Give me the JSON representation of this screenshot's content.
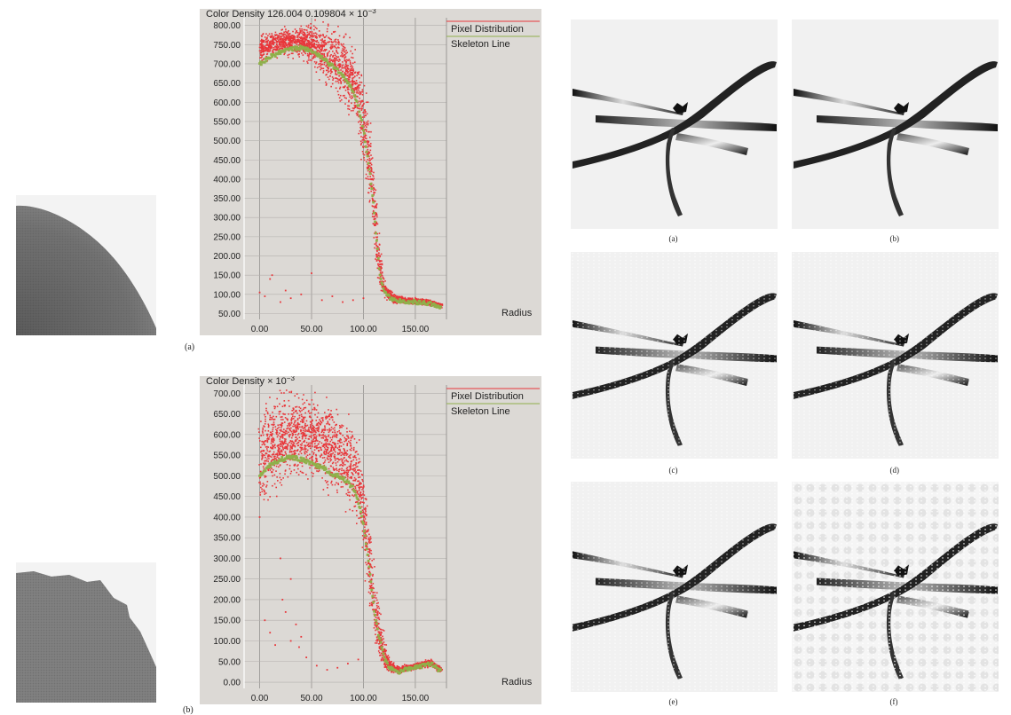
{
  "colors": {
    "pixel_distribution": "#e8363a",
    "skeleton_line": "#8fb04a",
    "plot_background": "#dcd9d5"
  },
  "figure_left": {
    "caption_a": "(a)",
    "caption_b": "(b)"
  },
  "figure_right": {
    "captions": [
      "(a)",
      "(b)",
      "(c)",
      "(d)",
      "(e)",
      "(f)"
    ]
  },
  "chart_data": [
    {
      "type": "scatter",
      "title": "Color Density 126.004  0.109804 × 10",
      "title_exp": "−3",
      "xlabel": "Radius",
      "ylabel": "",
      "xlim": [
        -15,
        180
      ],
      "ylim": [
        35,
        820
      ],
      "x_ticks": [
        "0.00",
        "50.00",
        "100.00",
        "150.00"
      ],
      "x_tick_values": [
        0,
        50,
        100,
        150
      ],
      "y_ticks": [
        "800.00",
        "750.00",
        "700.00",
        "650.00",
        "600.00",
        "550.00",
        "500.00",
        "450.00",
        "400.00",
        "350.00",
        "300.00",
        "250.00",
        "200.00",
        "150.00",
        "100.00",
        "50.00"
      ],
      "y_tick_values": [
        800,
        750,
        700,
        650,
        600,
        550,
        500,
        450,
        400,
        350,
        300,
        250,
        200,
        150,
        100,
        50
      ],
      "grid": true,
      "legend": [
        "Pixel Distribution",
        "Skeleton Line"
      ],
      "legend_position": "top-right",
      "series": [
        {
          "name": "Skeleton Line",
          "x": [
            0,
            10,
            20,
            30,
            40,
            50,
            60,
            70,
            80,
            90,
            95,
            100,
            105,
            110,
            113,
            116,
            120,
            125,
            130,
            140,
            150,
            160,
            170,
            175
          ],
          "y": [
            700,
            718,
            730,
            738,
            742,
            735,
            715,
            695,
            670,
            630,
            590,
            530,
            440,
            330,
            230,
            150,
            110,
            92,
            85,
            82,
            80,
            78,
            72,
            68
          ]
        },
        {
          "name": "Pixel Distribution",
          "x": [
            0,
            10,
            20,
            30,
            40,
            50,
            60,
            70,
            80,
            90,
            95,
            100,
            105,
            110,
            113,
            116,
            120,
            125,
            130,
            140,
            150,
            160,
            170,
            175
          ],
          "y": [
            740,
            750,
            755,
            758,
            760,
            750,
            735,
            715,
            690,
            650,
            610,
            550,
            460,
            350,
            250,
            165,
            118,
            98,
            88,
            84,
            82,
            80,
            74,
            70
          ],
          "spread": [
            45,
            45,
            45,
            45,
            50,
            70,
            90,
            110,
            120,
            130,
            130,
            130,
            130,
            120,
            100,
            60,
            30,
            20,
            15,
            12,
            10,
            10,
            10,
            8
          ],
          "outliers": [
            [
              0,
              105
            ],
            [
              5,
              95
            ],
            [
              10,
              140
            ],
            [
              12,
              150
            ],
            [
              20,
              80
            ],
            [
              25,
              110
            ],
            [
              30,
              90
            ],
            [
              40,
              100
            ],
            [
              50,
              155
            ],
            [
              60,
              85
            ],
            [
              70,
              95
            ],
            [
              80,
              80
            ],
            [
              90,
              85
            ],
            [
              100,
              90
            ]
          ]
        }
      ]
    },
    {
      "type": "scatter",
      "title": "Color Density × 10",
      "title_exp": "−3",
      "xlabel": "Radius",
      "ylabel": "",
      "xlim": [
        -15,
        180
      ],
      "ylim": [
        -15,
        720
      ],
      "x_ticks": [
        "0.00",
        "50.00",
        "100.00",
        "150.00"
      ],
      "x_tick_values": [
        0,
        50,
        100,
        150
      ],
      "y_ticks": [
        "700.00",
        "650.00",
        "600.00",
        "550.00",
        "500.00",
        "450.00",
        "400.00",
        "350.00",
        "300.00",
        "250.00",
        "200.00",
        "150.00",
        "100.00",
        "50.00",
        "0.00"
      ],
      "y_tick_values": [
        700,
        650,
        600,
        550,
        500,
        450,
        400,
        350,
        300,
        250,
        200,
        150,
        100,
        50,
        0
      ],
      "grid": true,
      "legend": [
        "Pixel Distribution",
        "Skeleton Line"
      ],
      "legend_position": "top-right",
      "series": [
        {
          "name": "Skeleton Line",
          "x": [
            0,
            10,
            20,
            30,
            40,
            50,
            60,
            70,
            80,
            90,
            95,
            100,
            105,
            110,
            115,
            120,
            125,
            130,
            135,
            140,
            150,
            160,
            165,
            170,
            175
          ],
          "y": [
            500,
            525,
            540,
            545,
            540,
            530,
            520,
            505,
            495,
            470,
            440,
            380,
            290,
            180,
            110,
            60,
            35,
            28,
            25,
            30,
            35,
            42,
            45,
            35,
            25
          ],
          "line": true
        },
        {
          "name": "Pixel Distribution",
          "x": [
            0,
            10,
            20,
            30,
            40,
            50,
            60,
            70,
            80,
            90,
            95,
            100,
            105,
            110,
            115,
            120,
            125,
            130,
            135,
            140,
            150,
            160,
            165,
            170,
            175
          ],
          "y": [
            540,
            570,
            590,
            600,
            600,
            590,
            580,
            560,
            545,
            520,
            480,
            410,
            310,
            195,
            120,
            65,
            40,
            32,
            28,
            33,
            38,
            45,
            48,
            38,
            28
          ],
          "spread": [
            150,
            150,
            140,
            130,
            130,
            130,
            130,
            130,
            130,
            130,
            130,
            140,
            140,
            120,
            80,
            40,
            20,
            12,
            10,
            10,
            10,
            12,
            12,
            10,
            8
          ],
          "outliers": [
            [
              0,
              400
            ],
            [
              5,
              150
            ],
            [
              10,
              120
            ],
            [
              15,
              90
            ],
            [
              20,
              300
            ],
            [
              22,
              200
            ],
            [
              25,
              170
            ],
            [
              30,
              250
            ],
            [
              35,
              140
            ],
            [
              40,
              110
            ],
            [
              45,
              60
            ],
            [
              55,
              40
            ],
            [
              65,
              30
            ],
            [
              75,
              35
            ],
            [
              85,
              45
            ],
            [
              95,
              55
            ],
            [
              30,
              100
            ],
            [
              38,
              85
            ]
          ]
        }
      ]
    }
  ]
}
